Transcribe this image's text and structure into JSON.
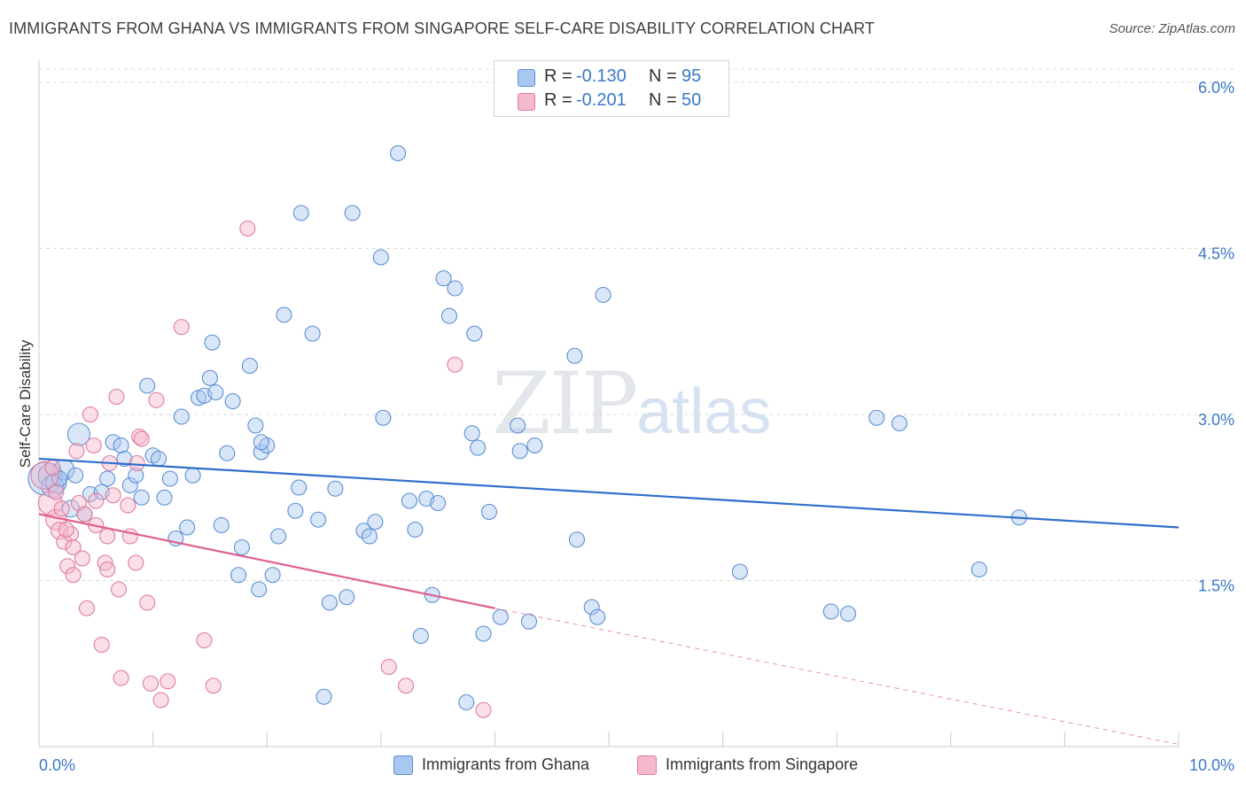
{
  "header": {
    "title": "IMMIGRANTS FROM GHANA VS IMMIGRANTS FROM SINGAPORE SELF-CARE DISABILITY CORRELATION CHART",
    "source": "Source: ZipAtlas.com"
  },
  "watermark": {
    "zip": "ZIP",
    "atlas": "atlas"
  },
  "legend": {
    "ghana": {
      "r_label": "R =",
      "r_value": "-0.130",
      "n_label": "N =",
      "n_value": "95",
      "name": "Immigrants from Ghana"
    },
    "singapore": {
      "r_label": "R =",
      "r_value": "-0.201",
      "n_label": "N =",
      "n_value": "50",
      "name": "Immigrants from Singapore"
    }
  },
  "colors": {
    "ghana_fill": "#a8c8f0",
    "ghana_stroke": "#5b8fd4",
    "ghana_line": "#2f6fcc",
    "singapore_fill": "#f5b8cc",
    "singapore_stroke": "#e07a9e",
    "singapore_line": "#e0608e",
    "tick_label": "#3a78c9",
    "grid": "#d9d9d9"
  },
  "chart_data": {
    "type": "scatter",
    "title": "IMMIGRANTS FROM GHANA VS IMMIGRANTS FROM SINGAPORE SELF-CARE DISABILITY CORRELATION CHART",
    "xlabel": "",
    "ylabel": "Self-Care Disability",
    "xlim": [
      0,
      10
    ],
    "ylim": [
      0,
      6.2
    ],
    "x_tick_labels": [
      "0.0%",
      "10.0%"
    ],
    "y_ticks": [
      1.5,
      3.0,
      4.5,
      6.0
    ],
    "y_tick_labels": [
      "1.5%",
      "3.0%",
      "4.5%",
      "6.0%"
    ],
    "grid": true,
    "legend_position": "top-center",
    "series": [
      {
        "name": "Immigrants from Ghana",
        "trend": {
          "x": [
            0,
            10
          ],
          "y": [
            2.6,
            1.98
          ]
        },
        "points": [
          [
            0.05,
            2.42,
            36
          ],
          [
            0.1,
            2.45,
            26
          ],
          [
            0.12,
            2.35,
            24
          ],
          [
            0.15,
            2.38,
            22
          ],
          [
            0.22,
            2.5,
            22
          ],
          [
            0.35,
            2.82,
            24
          ],
          [
            0.28,
            2.15,
            18
          ],
          [
            0.4,
            2.1,
            16
          ],
          [
            0.45,
            2.28,
            16
          ],
          [
            0.55,
            2.3,
            16
          ],
          [
            0.6,
            2.42,
            16
          ],
          [
            0.65,
            2.75,
            16
          ],
          [
            0.72,
            2.72,
            16
          ],
          [
            0.8,
            2.36,
            16
          ],
          [
            0.85,
            2.45,
            16
          ],
          [
            0.9,
            2.25,
            16
          ],
          [
            0.95,
            3.26,
            16
          ],
          [
            1.0,
            2.63,
            16
          ],
          [
            1.05,
            2.6,
            16
          ],
          [
            1.1,
            2.25,
            16
          ],
          [
            1.15,
            2.42,
            16
          ],
          [
            1.2,
            1.88,
            16
          ],
          [
            1.25,
            2.98,
            16
          ],
          [
            1.3,
            1.98,
            16
          ],
          [
            1.35,
            2.45,
            16
          ],
          [
            1.4,
            3.15,
            16
          ],
          [
            1.45,
            3.17,
            16
          ],
          [
            1.5,
            3.33,
            16
          ],
          [
            1.52,
            3.65,
            16
          ],
          [
            1.55,
            3.2,
            16
          ],
          [
            1.6,
            2.0,
            16
          ],
          [
            1.65,
            2.65,
            16
          ],
          [
            1.7,
            3.12,
            16
          ],
          [
            1.75,
            1.55,
            16
          ],
          [
            1.78,
            1.8,
            16
          ],
          [
            1.85,
            3.44,
            16
          ],
          [
            1.9,
            2.9,
            16
          ],
          [
            1.93,
            1.42,
            16
          ],
          [
            1.95,
            2.66,
            16
          ],
          [
            2.0,
            2.72,
            16
          ],
          [
            2.05,
            1.55,
            16
          ],
          [
            2.1,
            1.9,
            16
          ],
          [
            2.15,
            3.9,
            16
          ],
          [
            2.25,
            2.13,
            16
          ],
          [
            2.28,
            2.34,
            16
          ],
          [
            2.3,
            4.82,
            16
          ],
          [
            2.4,
            3.73,
            16
          ],
          [
            2.45,
            2.05,
            16
          ],
          [
            2.55,
            1.3,
            16
          ],
          [
            2.6,
            2.33,
            16
          ],
          [
            2.7,
            1.35,
            16
          ],
          [
            2.75,
            4.82,
            16
          ],
          [
            2.85,
            1.95,
            16
          ],
          [
            2.9,
            1.9,
            16
          ],
          [
            2.95,
            2.03,
            16
          ],
          [
            3.0,
            4.42,
            16
          ],
          [
            3.02,
            2.97,
            16
          ],
          [
            3.15,
            5.36,
            16
          ],
          [
            3.25,
            2.22,
            16
          ],
          [
            3.3,
            1.96,
            16
          ],
          [
            3.35,
            1.0,
            16
          ],
          [
            3.4,
            2.24,
            16
          ],
          [
            3.45,
            1.37,
            16
          ],
          [
            3.5,
            2.2,
            16
          ],
          [
            3.55,
            4.23,
            16
          ],
          [
            3.6,
            3.89,
            16
          ],
          [
            3.65,
            4.14,
            16
          ],
          [
            3.75,
            0.4,
            16
          ],
          [
            3.8,
            2.83,
            16
          ],
          [
            3.82,
            3.73,
            16
          ],
          [
            3.85,
            2.7,
            16
          ],
          [
            3.9,
            1.02,
            16
          ],
          [
            3.95,
            2.12,
            16
          ],
          [
            4.05,
            1.17,
            16
          ],
          [
            4.2,
            2.9,
            16
          ],
          [
            4.22,
            2.67,
            16
          ],
          [
            4.3,
            1.13,
            16
          ],
          [
            4.35,
            2.72,
            16
          ],
          [
            4.7,
            3.53,
            16
          ],
          [
            4.72,
            1.87,
            16
          ],
          [
            4.85,
            1.26,
            16
          ],
          [
            4.9,
            1.17,
            16
          ],
          [
            4.95,
            4.08,
            16
          ],
          [
            6.15,
            1.58,
            16
          ],
          [
            6.95,
            1.22,
            16
          ],
          [
            7.1,
            1.2,
            16
          ],
          [
            7.35,
            2.97,
            16
          ],
          [
            7.55,
            2.92,
            16
          ],
          [
            8.25,
            1.6,
            16
          ],
          [
            8.6,
            2.07,
            16
          ],
          [
            1.95,
            2.75,
            16
          ],
          [
            0.75,
            2.6,
            16
          ],
          [
            2.5,
            0.45,
            16
          ],
          [
            0.32,
            2.45,
            16
          ],
          [
            0.18,
            2.42,
            16
          ]
        ]
      },
      {
        "name": "Immigrants from Singapore",
        "trend": {
          "x": [
            0,
            4
          ],
          "y": [
            2.1,
            1.25
          ]
        },
        "trend_extension": {
          "x": [
            4,
            10
          ],
          "y": [
            1.25,
            0.02
          ]
        },
        "points": [
          [
            0.05,
            2.45,
            30
          ],
          [
            0.1,
            2.2,
            26
          ],
          [
            0.15,
            2.05,
            22
          ],
          [
            0.18,
            1.95,
            18
          ],
          [
            0.2,
            2.15,
            16
          ],
          [
            0.22,
            1.85,
            16
          ],
          [
            0.25,
            1.63,
            16
          ],
          [
            0.28,
            1.92,
            16
          ],
          [
            0.3,
            1.8,
            16
          ],
          [
            0.35,
            2.2,
            16
          ],
          [
            0.38,
            1.7,
            16
          ],
          [
            0.42,
            1.25,
            16
          ],
          [
            0.45,
            3.0,
            16
          ],
          [
            0.48,
            2.72,
            16
          ],
          [
            0.5,
            2.0,
            16
          ],
          [
            0.55,
            0.92,
            16
          ],
          [
            0.58,
            1.66,
            16
          ],
          [
            0.6,
            1.9,
            16
          ],
          [
            0.62,
            2.56,
            16
          ],
          [
            0.65,
            2.27,
            16
          ],
          [
            0.68,
            3.16,
            16
          ],
          [
            0.72,
            0.62,
            16
          ],
          [
            0.78,
            2.18,
            16
          ],
          [
            0.8,
            1.9,
            16
          ],
          [
            0.85,
            1.66,
            16
          ],
          [
            0.88,
            2.8,
            16
          ],
          [
            0.9,
            2.78,
            16
          ],
          [
            0.95,
            1.3,
            16
          ],
          [
            0.98,
            0.57,
            16
          ],
          [
            1.03,
            3.13,
            16
          ],
          [
            1.07,
            0.42,
            16
          ],
          [
            1.13,
            0.59,
            16
          ],
          [
            1.25,
            3.79,
            16
          ],
          [
            1.45,
            0.96,
            16
          ],
          [
            1.53,
            0.55,
            16
          ],
          [
            1.83,
            4.68,
            16
          ],
          [
            3.07,
            0.72,
            16
          ],
          [
            3.22,
            0.55,
            16
          ],
          [
            3.65,
            3.45,
            16
          ],
          [
            3.9,
            0.33,
            16
          ],
          [
            0.4,
            2.1,
            16
          ],
          [
            0.33,
            2.67,
            16
          ],
          [
            0.6,
            1.6,
            16
          ],
          [
            0.86,
            2.56,
            16
          ],
          [
            0.3,
            1.55,
            16
          ],
          [
            0.12,
            2.52,
            16
          ],
          [
            0.5,
            2.22,
            16
          ],
          [
            0.7,
            1.42,
            16
          ],
          [
            0.24,
            1.96,
            16
          ],
          [
            0.15,
            2.3,
            16
          ]
        ]
      }
    ]
  }
}
